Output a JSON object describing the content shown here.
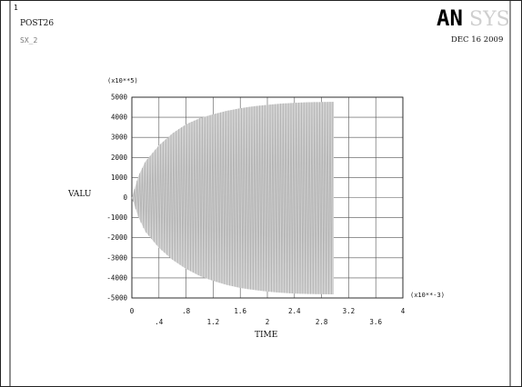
{
  "header": {
    "window_number": "1",
    "program_label": "POST26",
    "variable_label": "SX_2",
    "logo_text": "ANSYS",
    "date": "DEC 16 2009"
  },
  "chart_data": {
    "type": "line",
    "xlabel": "TIME",
    "ylabel": "VALU",
    "x_multiplier": "(x10**-3)",
    "y_multiplier": "(x10**5)",
    "xlim": [
      0,
      4
    ],
    "ylim": [
      -5000,
      5000
    ],
    "x_ticks": [
      0,
      0.4,
      0.8,
      1.2,
      1.6,
      2.0,
      2.4,
      2.8,
      3.2,
      3.6,
      4.0
    ],
    "x_tick_labels": [
      "0",
      ".4",
      ".8",
      "1.2",
      "1.6",
      "2",
      "2.4",
      "2.8",
      "3.2",
      "3.6",
      "4"
    ],
    "y_ticks": [
      -5000,
      -4000,
      -3000,
      -2000,
      -1000,
      0,
      1000,
      2000,
      3000,
      4000,
      5000
    ],
    "y_tick_labels": [
      "-5000",
      "-4000",
      "-3000",
      "-2000",
      "-1000",
      "0",
      "1000",
      "2000",
      "3000",
      "4000",
      "5000"
    ],
    "grid": true,
    "series": [
      {
        "color": "#b4b4b4",
        "x_end": 2.98,
        "envelope": {
          "x": [
            0,
            0.1,
            0.2,
            0.4,
            0.6,
            0.8,
            1.0,
            1.2,
            1.4,
            1.6,
            1.8,
            2.0,
            2.2,
            2.4,
            2.6,
            2.8,
            2.98
          ],
          "upper": [
            0,
            1100,
            1800,
            2600,
            3200,
            3650,
            3950,
            4150,
            4320,
            4450,
            4550,
            4620,
            4680,
            4720,
            4750,
            4760,
            4770
          ],
          "lower": [
            0,
            -1000,
            -1700,
            -2500,
            -3100,
            -3550,
            -3900,
            -4150,
            -4350,
            -4500,
            -4600,
            -4680,
            -4740,
            -4780,
            -4800,
            -4810,
            -4820
          ]
        },
        "oscillation_period": 0.0385
      }
    ]
  }
}
